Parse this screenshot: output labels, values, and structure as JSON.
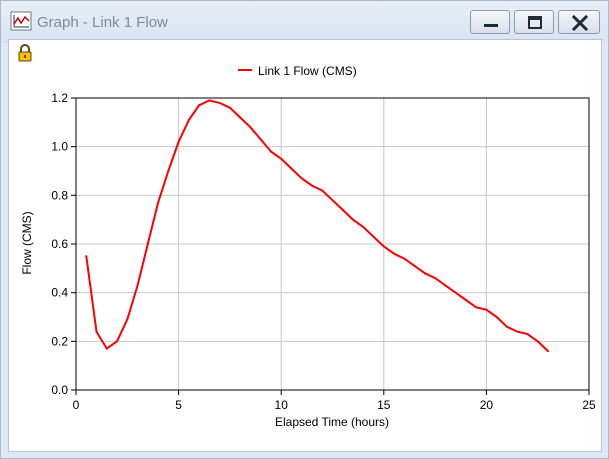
{
  "window": {
    "title": "Graph - Link 1 Flow",
    "icons": {
      "app": "chart-icon",
      "lock": "lock-icon",
      "minimize": "minimize-icon",
      "maximize": "maximize-icon",
      "close": "close-icon"
    }
  },
  "colors": {
    "series": "#ff0000",
    "grid": "#c8c8c8",
    "axis": "#000000"
  },
  "chart_data": {
    "type": "line",
    "xlabel": "Elapsed Time (hours)",
    "ylabel": "Flow (CMS)",
    "xlim": [
      0,
      25
    ],
    "ylim": [
      0,
      1.2
    ],
    "xticks": [
      "0",
      "5",
      "10",
      "15",
      "20",
      "25"
    ],
    "yticks": [
      "0.0",
      "0.2",
      "0.4",
      "0.6",
      "0.8",
      "1.0",
      "1.2"
    ],
    "grid": true,
    "legend_position": "top-center",
    "series": [
      {
        "name": "Link 1 Flow (CMS)",
        "color": "#ff0000",
        "x": [
          0.5,
          1,
          1.5,
          2,
          2.5,
          3,
          3.5,
          4,
          4.5,
          5,
          5.5,
          6,
          6.5,
          7,
          7.5,
          8,
          8.5,
          9,
          9.5,
          10,
          10.5,
          11,
          11.5,
          12,
          12.5,
          13,
          13.5,
          14,
          14.5,
          15,
          15.5,
          16,
          16.5,
          17,
          17.5,
          18,
          18.5,
          19,
          19.5,
          20,
          20.5,
          21,
          21.5,
          22,
          22.5,
          23
        ],
        "y": [
          0.55,
          0.24,
          0.17,
          0.2,
          0.29,
          0.43,
          0.6,
          0.77,
          0.9,
          1.02,
          1.11,
          1.17,
          1.19,
          1.18,
          1.16,
          1.12,
          1.08,
          1.03,
          0.98,
          0.95,
          0.91,
          0.87,
          0.84,
          0.82,
          0.78,
          0.74,
          0.7,
          0.67,
          0.63,
          0.59,
          0.56,
          0.54,
          0.51,
          0.48,
          0.46,
          0.43,
          0.4,
          0.37,
          0.34,
          0.33,
          0.3,
          0.26,
          0.24,
          0.23,
          0.2,
          0.16
        ]
      }
    ]
  }
}
